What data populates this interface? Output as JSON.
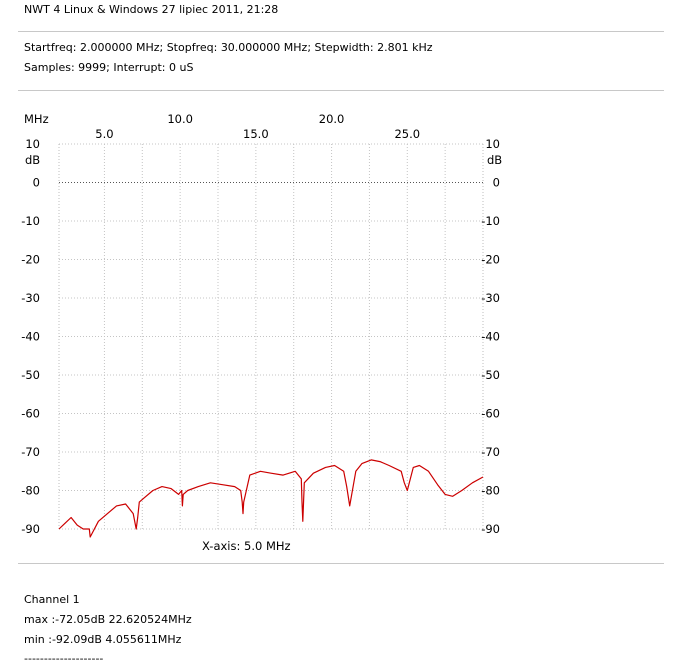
{
  "header": {
    "title": "NWT 4 Linux & Windows  27 lipiec 2011, 21:28",
    "params_line1": "Startfreq: 2.000000 MHz; Stopfreq: 30.000000 MHz; Stepwidth: 2.801 kHz",
    "params_line2": "Samples: 9999; Interrupt:    0 uS"
  },
  "footer": {
    "channel": "Channel 1",
    "max": "max :-72.05dB 22.620524MHz",
    "min": "min :-92.09dB 4.055611MHz",
    "separator": "--------------------"
  },
  "chart_data": {
    "type": "line",
    "x_unit_label": "MHz",
    "y_unit_label": "dB",
    "xlabel": "X-axis: 5.0 MHz",
    "xlim": [
      2.0,
      30.0
    ],
    "ylim": [
      -90,
      10
    ],
    "x_ticks_upper": [
      "10.0",
      "20.0"
    ],
    "x_ticks_lower": [
      "5.0",
      "15.0",
      "25.0"
    ],
    "x_tick_values_upper": [
      10,
      20
    ],
    "x_tick_values_lower": [
      5,
      15,
      25
    ],
    "y_ticks": [
      "10",
      "0",
      "-10",
      "-20",
      "-30",
      "-40",
      "-50",
      "-60",
      "-70",
      "-80",
      "-90"
    ],
    "y_tick_values": [
      10,
      0,
      -10,
      -20,
      -30,
      -40,
      -50,
      -60,
      -70,
      -80,
      -90
    ],
    "grid": true,
    "line_color": "#cc0000",
    "series": [
      {
        "x": [
          2.0,
          2.4,
          2.8,
          3.2,
          3.6,
          4.0,
          4.06,
          4.6,
          5.2,
          5.8,
          6.4,
          6.9,
          7.1,
          7.2,
          7.3,
          7.6,
          8.2,
          8.8,
          9.4,
          9.9,
          10.1,
          10.15,
          10.2,
          10.5,
          11.2,
          12.0,
          12.8,
          13.6,
          14.0,
          14.1,
          14.15,
          14.2,
          14.6,
          15.3,
          16.0,
          16.8,
          17.6,
          18.0,
          18.05,
          18.1,
          18.2,
          18.8,
          19.6,
          20.2,
          20.8,
          21.0,
          21.2,
          21.6,
          22.0,
          22.62,
          23.2,
          23.8,
          24.6,
          24.8,
          25.0,
          25.4,
          25.8,
          26.4,
          27.0,
          27.5,
          28.0,
          28.6,
          29.3,
          30.0
        ],
        "y": [
          -90,
          -88.5,
          -87,
          -89,
          -90,
          -90,
          -92.09,
          -88,
          -86,
          -84,
          -83.5,
          -86,
          -90,
          -87,
          -83,
          -82,
          -80,
          -79,
          -79.5,
          -81,
          -80,
          -84,
          -81,
          -80,
          -79,
          -78,
          -78.5,
          -79,
          -80,
          -83,
          -86,
          -83,
          -76,
          -75,
          -75.5,
          -76,
          -75,
          -77,
          -83,
          -88,
          -78,
          -75.5,
          -74,
          -73.5,
          -75,
          -79,
          -84,
          -75,
          -73,
          -72.05,
          -72.5,
          -73.5,
          -75,
          -78,
          -80,
          -74,
          -73.5,
          -75,
          -78.5,
          -81,
          -81.5,
          -80,
          -78,
          -76.5
        ]
      }
    ]
  }
}
